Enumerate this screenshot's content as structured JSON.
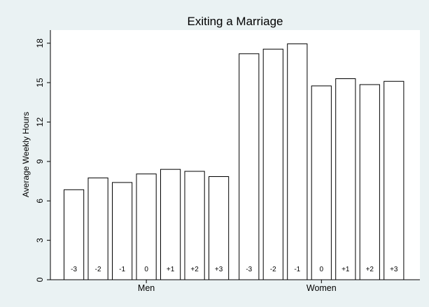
{
  "chart_data": {
    "type": "bar",
    "title": "Exiting a Marriage",
    "xlabel": "",
    "ylabel": "Average Weekly Hours",
    "ylim": [
      0,
      19
    ],
    "yticks": [
      0,
      3,
      6,
      9,
      12,
      15,
      18
    ],
    "grid": false,
    "background_color": "#eaf2f3",
    "plot_background_color": "#ffffff",
    "bar_color": "#ffffff",
    "bar_edge_color": "#000000",
    "groups": [
      {
        "name": "Men",
        "categories": [
          "-3",
          "-2",
          "-1",
          "0",
          "+1",
          "+2",
          "+3"
        ],
        "values": [
          6.85,
          7.75,
          7.4,
          8.05,
          8.4,
          8.25,
          7.85
        ]
      },
      {
        "name": "Women",
        "categories": [
          "-3",
          "-2",
          "-1",
          "0",
          "+1",
          "+2",
          "+3"
        ],
        "values": [
          17.2,
          17.55,
          17.95,
          14.75,
          15.3,
          14.85,
          15.1
        ]
      }
    ]
  }
}
